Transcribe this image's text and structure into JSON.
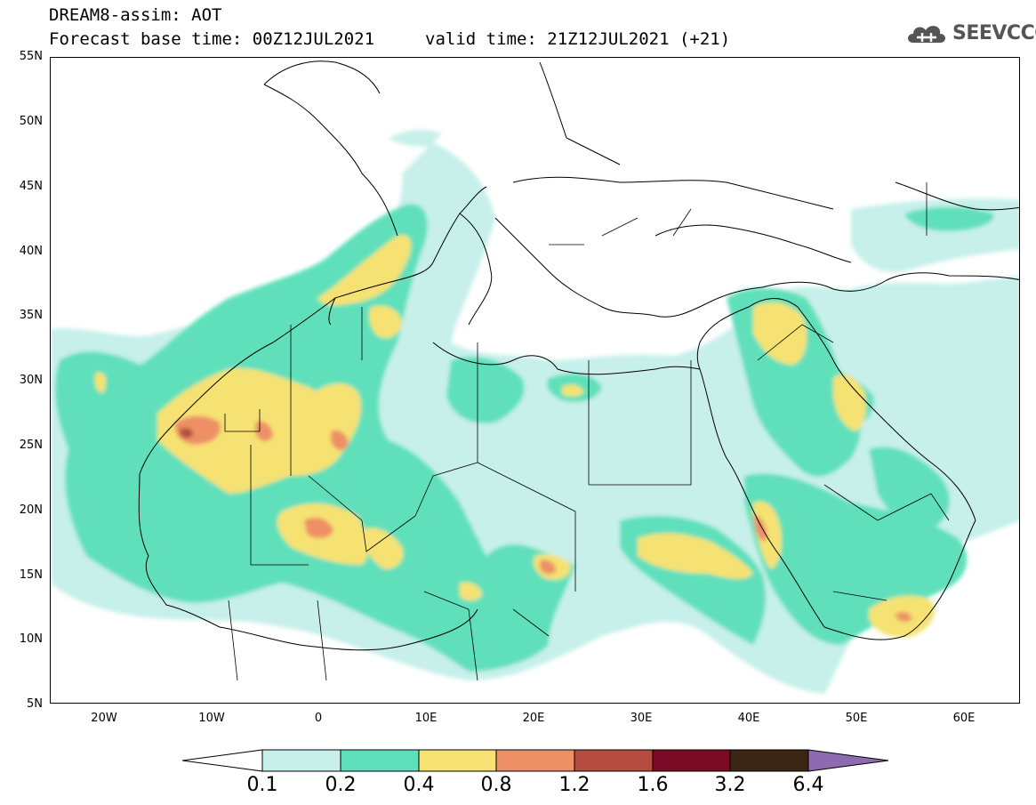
{
  "header": {
    "title": "DREAM8-assim: AOT",
    "base_time": "Forecast base time: 00Z12JUL2021",
    "valid_time": "valid time: 21Z12JUL2021 (+21)"
  },
  "logo": {
    "text": "SEEVCCC",
    "icon": "cloud-icon",
    "color": "#555555"
  },
  "map": {
    "lat_labels": [
      "55N",
      "50N",
      "45N",
      "40N",
      "35N",
      "30N",
      "25N",
      "20N",
      "15N",
      "10N",
      "5N"
    ],
    "lon_labels": [
      "20W",
      "10W",
      "0",
      "10E",
      "20E",
      "30E",
      "40E",
      "50E",
      "60E"
    ]
  },
  "colorbar": {
    "levels": [
      "0.1",
      "0.2",
      "0.4",
      "0.8",
      "1.2",
      "1.6",
      "3.2",
      "6.4"
    ],
    "colors": [
      "#c7f0ea",
      "#5ee0bb",
      "#f5e272",
      "#ee9065",
      "#b54c3f",
      "#7a0a25",
      "#3b2616",
      "#8e6ab0"
    ]
  }
}
